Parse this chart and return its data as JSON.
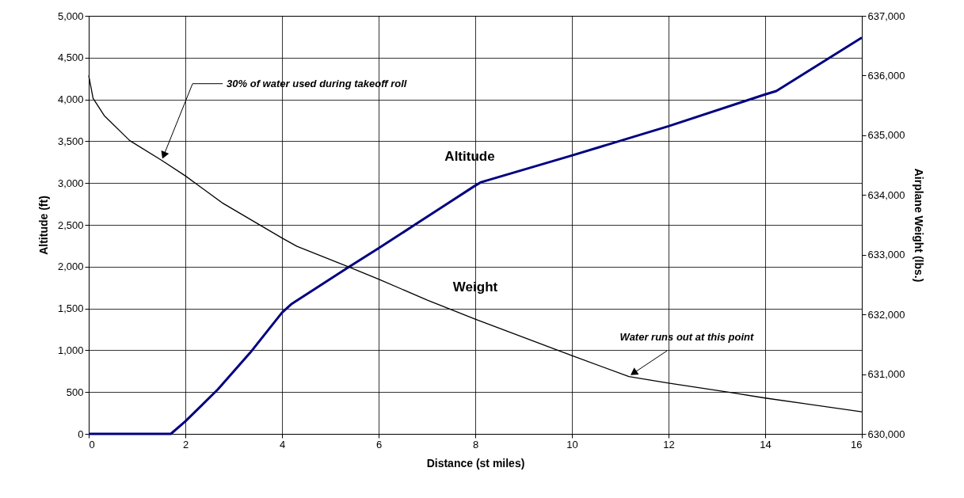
{
  "chart_data": {
    "type": "line",
    "xlabel": "Distance (st miles)",
    "ylabel": "Altitude (ft)",
    "y2label": "Airplane Weight (lbs.)",
    "xlim": [
      0,
      16
    ],
    "xticks": [
      0,
      2,
      4,
      6,
      8,
      10,
      12,
      14,
      16
    ],
    "ylim": [
      0,
      5000
    ],
    "yticks": [
      0,
      500,
      {
        "value": 1000,
        "label": "1,000"
      },
      {
        "value": 1500,
        "label": "1,500"
      },
      {
        "value": 2000,
        "label": "2,000"
      },
      {
        "value": 2500,
        "label": "2,500"
      },
      {
        "value": 3000,
        "label": "3,000"
      },
      {
        "value": 3500,
        "label": "3,500"
      },
      {
        "value": 4000,
        "label": "4,000"
      },
      {
        "value": 4500,
        "label": "4,500"
      },
      {
        "value": 5000,
        "label": "5,000"
      }
    ],
    "y2lim": [
      630000,
      637000
    ],
    "y2ticks": [
      {
        "value": 630000,
        "label": "630,000"
      },
      {
        "value": 631000,
        "label": "631,000"
      },
      {
        "value": 632000,
        "label": "632,000"
      },
      {
        "value": 633000,
        "label": "633,000"
      },
      {
        "value": 634000,
        "label": "634,000"
      },
      {
        "value": 635000,
        "label": "635,000"
      },
      {
        "value": 636000,
        "label": "636,000"
      },
      {
        "value": 637000,
        "label": "637,000"
      }
    ],
    "grid": true,
    "line_style": "solid",
    "series": [
      {
        "name": "Altitude",
        "color": "#000080",
        "x": [
          0,
          1.7,
          2,
          2.67,
          3.34,
          4,
          4.19,
          5.37,
          6,
          6.72,
          8,
          8.12,
          10,
          12,
          14,
          14.23,
          16
        ],
        "values": [
          0,
          0,
          150,
          530,
          970,
          1450,
          1550,
          1990,
          2220,
          2490,
          2970,
          3010,
          3330,
          3680,
          4060,
          4100,
          4740
        ]
      },
      {
        "name": "Weight",
        "color": "#000000",
        "axis": "y2",
        "x": [
          0,
          0.09,
          0.32,
          0.85,
          1.51,
          2,
          2.76,
          4,
          4.31,
          5.37,
          6,
          7.01,
          8,
          10,
          11.18,
          12,
          13.3,
          14,
          16
        ],
        "values": [
          636000,
          635620,
          635330,
          634910,
          634580,
          634320,
          633870,
          633280,
          633140,
          632800,
          632590,
          632240,
          631920,
          631310,
          630960,
          630850,
          630690,
          630600,
          630370
        ]
      }
    ],
    "annotations": [
      {
        "text": "30% of water used during takeoff roll",
        "x": 1.51,
        "y": 3270
      },
      {
        "text": "Water runs out at this point",
        "x": 11.18,
        "y": 690
      }
    ]
  }
}
